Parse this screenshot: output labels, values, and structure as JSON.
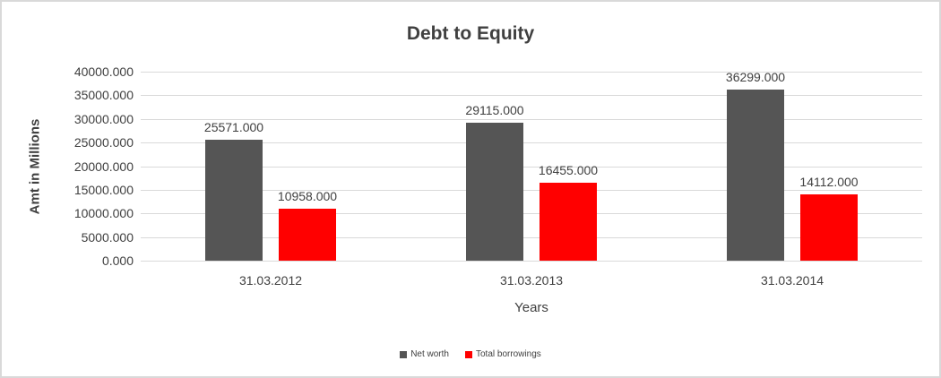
{
  "chart_data": {
    "type": "bar",
    "title": "Debt to Equity",
    "xlabel": "Years",
    "ylabel": "Amt in Millions",
    "categories": [
      "31.03.2012",
      "31.03.2013",
      "31.03.2014"
    ],
    "series": [
      {
        "name": "Net worth",
        "color": "#555555",
        "values": [
          25571,
          29115,
          36299
        ],
        "data_labels": [
          "25571.000",
          "29115.000",
          "36299.000"
        ]
      },
      {
        "name": "Total borrowings",
        "color": "#ff0000",
        "values": [
          10958,
          16455,
          14112
        ],
        "data_labels": [
          "10958.000",
          "16455.000",
          "14112.000"
        ]
      }
    ],
    "ylim": [
      0,
      40000
    ],
    "ytick_step": 5000,
    "ytick_labels": [
      "0.000",
      "5000.000",
      "10000.000",
      "15000.000",
      "20000.000",
      "25000.000",
      "30000.000",
      "35000.000",
      "40000.000"
    ],
    "grid": true,
    "gridline_color": "#d9d9d9",
    "text_color": "#404040",
    "frame_border_color": "#d9d9d9",
    "legend_position": "bottom"
  }
}
